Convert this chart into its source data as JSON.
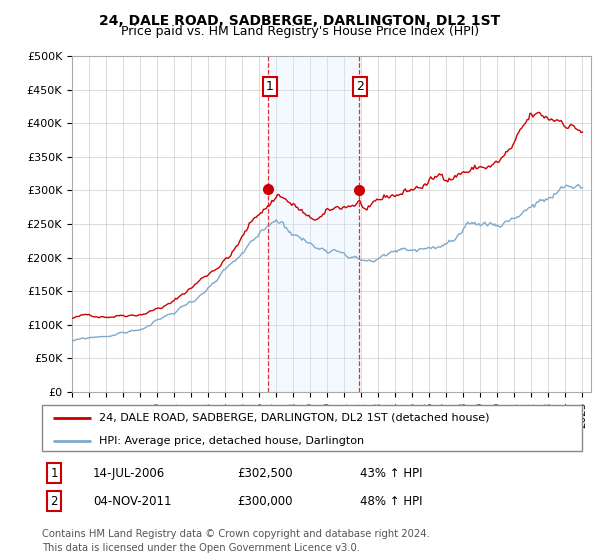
{
  "title": "24, DALE ROAD, SADBERGE, DARLINGTON, DL2 1ST",
  "subtitle": "Price paid vs. HM Land Registry's House Price Index (HPI)",
  "ylabel_ticks": [
    "£0",
    "£50K",
    "£100K",
    "£150K",
    "£200K",
    "£250K",
    "£300K",
    "£350K",
    "£400K",
    "£450K",
    "£500K"
  ],
  "ylim": [
    0,
    500000
  ],
  "xlim_start": 1995.0,
  "xlim_end": 2025.5,
  "transaction1_year": 2006.536,
  "transaction1_price": 302500,
  "transaction2_year": 2011.84,
  "transaction2_price": 300000,
  "legend_line1": "24, DALE ROAD, SADBERGE, DARLINGTON, DL2 1ST (detached house)",
  "legend_line2": "HPI: Average price, detached house, Darlington",
  "footnote1": "Contains HM Land Registry data © Crown copyright and database right 2024.",
  "footnote2": "This data is licensed under the Open Government Licence v3.0.",
  "annot1_date": "14-JUL-2006",
  "annot1_price": "£302,500",
  "annot1_pct": "43% ↑ HPI",
  "annot2_date": "04-NOV-2011",
  "annot2_price": "£300,000",
  "annot2_pct": "48% ↑ HPI",
  "line_color_red": "#cc0000",
  "line_color_blue": "#7faacc",
  "shade_color": "#ddeeff",
  "background_color": "#ffffff",
  "grid_color": "#cccccc",
  "annot_box_color": "#cc0000",
  "title_fontsize": 10,
  "subtitle_fontsize": 9,
  "tick_fontsize": 8,
  "legend_fontsize": 8.5,
  "annot_fontsize": 8.5
}
